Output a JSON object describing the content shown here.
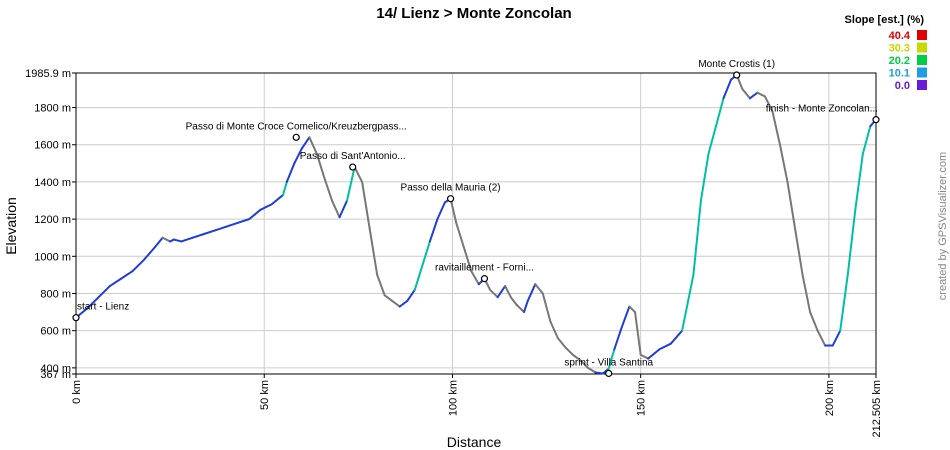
{
  "chart_data": {
    "type": "line",
    "title": "14/ Lienz > Monte Zoncolan",
    "xlabel": "Distance",
    "ylabel": "Elevation",
    "xlim": [
      0,
      212.505
    ],
    "ylim": [
      367,
      1985.9
    ],
    "x_ticks": [
      {
        "value": 0,
        "label": "0 km"
      },
      {
        "value": 50,
        "label": "50 km"
      },
      {
        "value": 100,
        "label": "100 km"
      },
      {
        "value": 150,
        "label": "150 km"
      },
      {
        "value": 200,
        "label": "200 km"
      },
      {
        "value": 212.505,
        "label": "212.505 km"
      }
    ],
    "y_ticks": [
      {
        "value": 367,
        "label": "367 m"
      },
      {
        "value": 400,
        "label": "400 m"
      },
      {
        "value": 600,
        "label": "600 m"
      },
      {
        "value": 800,
        "label": "800 m"
      },
      {
        "value": 1000,
        "label": "1000 m"
      },
      {
        "value": 1200,
        "label": "1200 m"
      },
      {
        "value": 1400,
        "label": "1400 m"
      },
      {
        "value": 1600,
        "label": "1600 m"
      },
      {
        "value": 1800,
        "label": "1800 m"
      },
      {
        "value": 1985.9,
        "label": "1985.9 m"
      }
    ],
    "grid": true,
    "series": [
      {
        "x": [
          0,
          3,
          6,
          9,
          12,
          15,
          18,
          21,
          23,
          25,
          26,
          28,
          31,
          34,
          37,
          40,
          43,
          46,
          49,
          52,
          55,
          56,
          58,
          60,
          62,
          64,
          66,
          68,
          70,
          72,
          74,
          76,
          78,
          80,
          82,
          84,
          86,
          88,
          90,
          92,
          94,
          96,
          98,
          99.5,
          101,
          103,
          105,
          107,
          108.5,
          110,
          112,
          114,
          115.5,
          117,
          119,
          120,
          122,
          124,
          126,
          128,
          130,
          132,
          134,
          136,
          138,
          140,
          141.5,
          143,
          145,
          147,
          148.5,
          150,
          152,
          155,
          158,
          161,
          164,
          166,
          168,
          170,
          172,
          174,
          175.5,
          177,
          179,
          181,
          183,
          185,
          187,
          189,
          191,
          193,
          195,
          197,
          199,
          201,
          203,
          205,
          207,
          209,
          211,
          212.505
        ],
        "y": [
          670,
          720,
          780,
          840,
          880,
          920,
          980,
          1050,
          1100,
          1080,
          1090,
          1080,
          1100,
          1120,
          1140,
          1160,
          1180,
          1200,
          1250,
          1280,
          1330,
          1400,
          1500,
          1580,
          1640,
          1550,
          1420,
          1300,
          1210,
          1300,
          1480,
          1400,
          1150,
          900,
          790,
          760,
          730,
          760,
          820,
          950,
          1080,
          1200,
          1290,
          1310,
          1180,
          1050,
          920,
          850,
          880,
          820,
          780,
          840,
          780,
          740,
          700,
          760,
          850,
          800,
          650,
          560,
          510,
          470,
          440,
          400,
          375,
          370,
          395,
          500,
          620,
          730,
          700,
          470,
          450,
          500,
          530,
          600,
          900,
          1300,
          1550,
          1700,
          1850,
          1950,
          1975,
          1900,
          1850,
          1880,
          1860,
          1780,
          1600,
          1400,
          1150,
          900,
          700,
          600,
          520,
          520,
          600,
          900,
          1250,
          1550,
          1700,
          1735
        ]
      }
    ],
    "waypoints": [
      {
        "x": 0,
        "y": 670,
        "label": "start - Lienz"
      },
      {
        "x": 58.5,
        "y": 1640,
        "label": "Passo di Monte Croce Comelico/Kreuzbergpass..."
      },
      {
        "x": 73.5,
        "y": 1480,
        "label": "Passo di Sant'Antonio..."
      },
      {
        "x": 99.5,
        "y": 1310,
        "label": "Passo della Mauria (2)"
      },
      {
        "x": 108.5,
        "y": 880,
        "label": "ravitaillement - Forni..."
      },
      {
        "x": 141.5,
        "y": 370,
        "label": "sprint - Villa Santina"
      },
      {
        "x": 175.5,
        "y": 1975,
        "label": "Monte Crostis (1)"
      },
      {
        "x": 212.505,
        "y": 1735,
        "label": "finish - Monte Zoncolan..."
      }
    ],
    "legend": {
      "title": "Slope [est.] (%)",
      "placement": "top-right",
      "items": [
        {
          "label": "40.4",
          "color": "#e00000"
        },
        {
          "label": "30.3",
          "color": "#c8d800"
        },
        {
          "label": "20.2",
          "color": "#00cc44"
        },
        {
          "label": "10.1",
          "color": "#1a9ee8"
        },
        {
          "label": "0.0",
          "color": "#6a1ad8"
        }
      ]
    },
    "line_colors": {
      "steep": "#00c0a0",
      "moderate": "#1f3ed8",
      "descent": "#777777"
    }
  },
  "credit": "created by GPSVisualizer.com"
}
